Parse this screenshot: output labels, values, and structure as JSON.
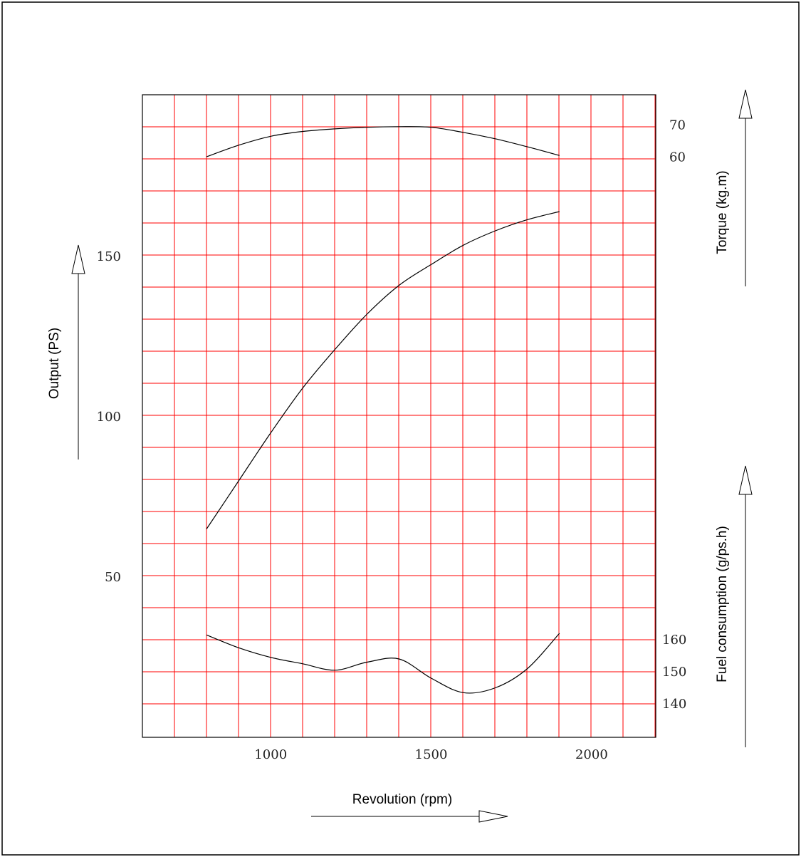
{
  "chart_data": {
    "type": "line",
    "xlabel": "Revolution (rpm)",
    "xlim": [
      600,
      2200
    ],
    "x_ticks": [
      1000,
      1500,
      2000
    ],
    "grid": true,
    "grid_color": "#ff0000",
    "line_color": "#000000",
    "axes": {
      "output": {
        "label": "Output (PS)",
        "side": "left",
        "ticks": [
          50,
          100,
          150
        ]
      },
      "torque": {
        "label": "Torque (kg.m)",
        "side": "right-top",
        "ticks": [
          60,
          70
        ]
      },
      "fuel": {
        "label": "Fuel consumption (g/ps.h)",
        "side": "right-bottom",
        "ticks": [
          140,
          150,
          160
        ]
      }
    },
    "series": [
      {
        "axis": "torque",
        "x": [
          800,
          900,
          1000,
          1100,
          1200,
          1300,
          1400,
          1500,
          1600,
          1700,
          1800,
          1900
        ],
        "values": [
          60.1,
          63.7,
          66.5,
          68.0,
          68.8,
          69.3,
          69.5,
          69.3,
          67.7,
          65.7,
          63.2,
          60.5
        ]
      },
      {
        "axis": "output",
        "x": [
          800,
          900,
          1000,
          1100,
          1200,
          1300,
          1400,
          1500,
          1600,
          1700,
          1800,
          1900
        ],
        "values": [
          65,
          80,
          95,
          109,
          121,
          132,
          141,
          147.5,
          153.5,
          158,
          161.5,
          164
        ]
      },
      {
        "axis": "fuel",
        "x": [
          800,
          900,
          1000,
          1100,
          1200,
          1300,
          1400,
          1500,
          1600,
          1700,
          1800,
          1900
        ],
        "values": [
          161.5,
          157.5,
          154.5,
          152.5,
          150.5,
          153.0,
          154.0,
          148.0,
          143.5,
          145.0,
          151.0,
          162.0
        ]
      }
    ]
  }
}
